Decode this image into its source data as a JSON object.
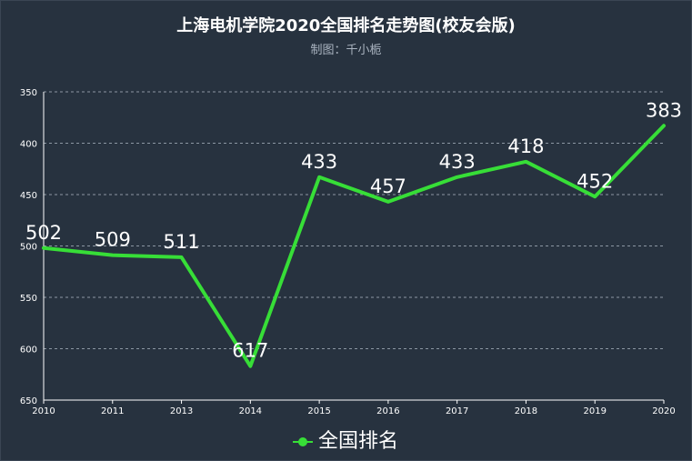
{
  "chart_data": {
    "type": "line",
    "title": "上海电机学院2020全国排名走势图(校友会版)",
    "subtitle": "制图：千小栀",
    "categories": [
      "2010",
      "2011",
      "2013",
      "2014",
      "2015",
      "2016",
      "2017",
      "2018",
      "2019",
      "2020"
    ],
    "series": [
      {
        "name": "全国排名",
        "values": [
          502,
          509,
          511,
          617,
          433,
          457,
          433,
          418,
          452,
          383
        ],
        "color": "#37de37"
      }
    ],
    "y_ticks": [
      "350",
      "400",
      "450",
      "500",
      "550",
      "600",
      "650"
    ],
    "ylim": [
      350,
      650
    ],
    "y_inverted": true,
    "grid": true,
    "legend_position": "bottom-center"
  }
}
